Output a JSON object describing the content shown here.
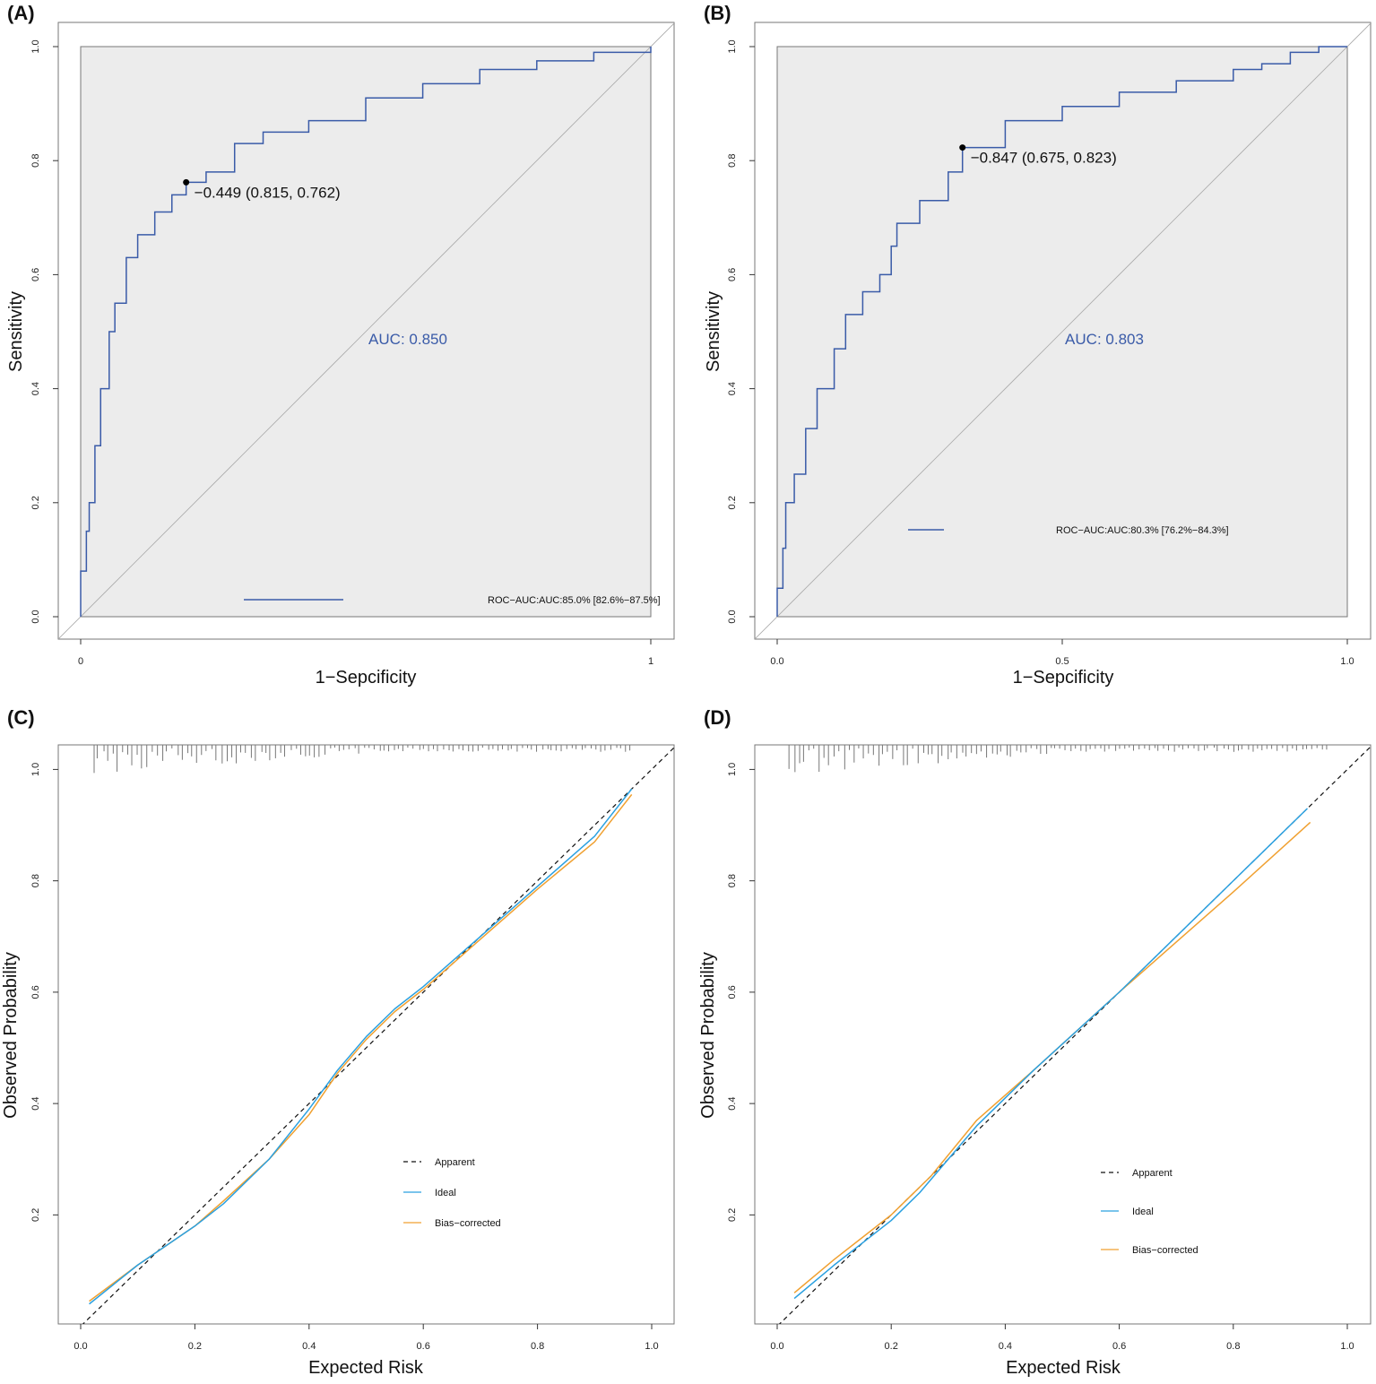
{
  "colors": {
    "roc": "#3a5ba8",
    "ideal": "#2aa0e0",
    "bias": "#f0a030",
    "apparent": "#111111",
    "panel_bg": "#ececec"
  },
  "chart_data": [
    {
      "panel": "(A)",
      "type": "line",
      "xlabel": "1−Sepcificity",
      "ylabel": "Sensitivity",
      "xticks": [
        "0",
        "1"
      ],
      "yticks": [
        "0.0",
        "0.2",
        "0.4",
        "0.6",
        "0.8",
        "1.0"
      ],
      "auc_text": "AUC: 0.850",
      "legend": "ROC−AUC:AUC:85.0% [82.6%−87.5%]",
      "threshold_label": "−0.449 (0.815, 0.762)",
      "threshold_point": [
        0.185,
        0.762
      ],
      "series": [
        {
          "name": "ROC",
          "x": [
            0,
            0,
            0.01,
            0.015,
            0.025,
            0.035,
            0.05,
            0.06,
            0.08,
            0.1,
            0.13,
            0.16,
            0.185,
            0.22,
            0.27,
            0.32,
            0.4,
            0.5,
            0.6,
            0.7,
            0.8,
            0.9,
            1
          ],
          "y": [
            0,
            0.08,
            0.15,
            0.2,
            0.3,
            0.4,
            0.5,
            0.55,
            0.63,
            0.67,
            0.71,
            0.74,
            0.762,
            0.78,
            0.83,
            0.85,
            0.87,
            0.91,
            0.935,
            0.96,
            0.975,
            0.99,
            1
          ]
        }
      ]
    },
    {
      "panel": "(B)",
      "type": "line",
      "xlabel": "1−Sepcificity",
      "ylabel": "Sensitivity",
      "xticks": [
        "0.0",
        "0.5",
        "1.0"
      ],
      "yticks": [
        "0.0",
        "0.2",
        "0.4",
        "0.6",
        "0.8",
        "1.0"
      ],
      "auc_text": "AUC: 0.803",
      "legend": "ROC−AUC:AUC:80.3% [76.2%−84.3%]",
      "threshold_label": "−0.847 (0.675, 0.823)",
      "threshold_point": [
        0.325,
        0.823
      ],
      "series": [
        {
          "name": "ROC",
          "x": [
            0,
            0,
            0.01,
            0.015,
            0.03,
            0.05,
            0.07,
            0.1,
            0.12,
            0.15,
            0.18,
            0.2,
            0.21,
            0.25,
            0.3,
            0.325,
            0.4,
            0.5,
            0.6,
            0.7,
            0.8,
            0.85,
            0.9,
            0.95,
            1
          ],
          "y": [
            0,
            0.05,
            0.12,
            0.2,
            0.25,
            0.33,
            0.4,
            0.47,
            0.53,
            0.57,
            0.6,
            0.65,
            0.69,
            0.73,
            0.78,
            0.823,
            0.87,
            0.895,
            0.92,
            0.94,
            0.96,
            0.97,
            0.99,
            1,
            1
          ]
        }
      ]
    },
    {
      "panel": "(C)",
      "type": "line",
      "xlabel": "Expected Risk",
      "ylabel": "Observed Probability",
      "xticks": [
        "0.0",
        "0.2",
        "0.4",
        "0.6",
        "0.8",
        "1.0"
      ],
      "yticks": [
        "0.2",
        "0.4",
        "0.6",
        "0.8",
        "1.0"
      ],
      "legend": [
        "Apparent",
        "Ideal",
        "Bias−corrected"
      ],
      "series": [
        {
          "name": "Ideal",
          "x": [
            0.015,
            0.1,
            0.2,
            0.25,
            0.33,
            0.4,
            0.45,
            0.5,
            0.55,
            0.6,
            0.7,
            0.8,
            0.9,
            0.965
          ],
          "y": [
            0.04,
            0.11,
            0.18,
            0.22,
            0.3,
            0.39,
            0.46,
            0.52,
            0.57,
            0.61,
            0.7,
            0.79,
            0.88,
            0.965
          ]
        },
        {
          "name": "Bias-corrected",
          "x": [
            0.015,
            0.1,
            0.2,
            0.25,
            0.33,
            0.4,
            0.45,
            0.5,
            0.55,
            0.6,
            0.7,
            0.8,
            0.9,
            0.965
          ],
          "y": [
            0.045,
            0.11,
            0.18,
            0.225,
            0.3,
            0.38,
            0.455,
            0.515,
            0.565,
            0.605,
            0.695,
            0.785,
            0.87,
            0.955
          ]
        }
      ]
    },
    {
      "panel": "(D)",
      "type": "line",
      "xlabel": "Expected Risk",
      "ylabel": "Observed Probability",
      "xticks": [
        "0.0",
        "0.2",
        "0.4",
        "0.6",
        "0.8",
        "1.0"
      ],
      "yticks": [
        "0.2",
        "0.4",
        "0.6",
        "0.8",
        "1.0"
      ],
      "legend": [
        "Apparent",
        "Ideal",
        "Bias−corrected"
      ],
      "series": [
        {
          "name": "Ideal",
          "x": [
            0.03,
            0.1,
            0.2,
            0.25,
            0.3,
            0.35,
            0.45,
            0.6,
            0.8,
            0.93
          ],
          "y": [
            0.05,
            0.11,
            0.19,
            0.24,
            0.3,
            0.36,
            0.46,
            0.6,
            0.8,
            0.93
          ]
        },
        {
          "name": "Bias-corrected",
          "x": [
            0.03,
            0.1,
            0.2,
            0.27,
            0.35,
            0.45,
            0.6,
            0.7,
            0.8,
            0.935
          ],
          "y": [
            0.06,
            0.12,
            0.2,
            0.27,
            0.37,
            0.46,
            0.6,
            0.69,
            0.78,
            0.905
          ]
        }
      ]
    }
  ]
}
